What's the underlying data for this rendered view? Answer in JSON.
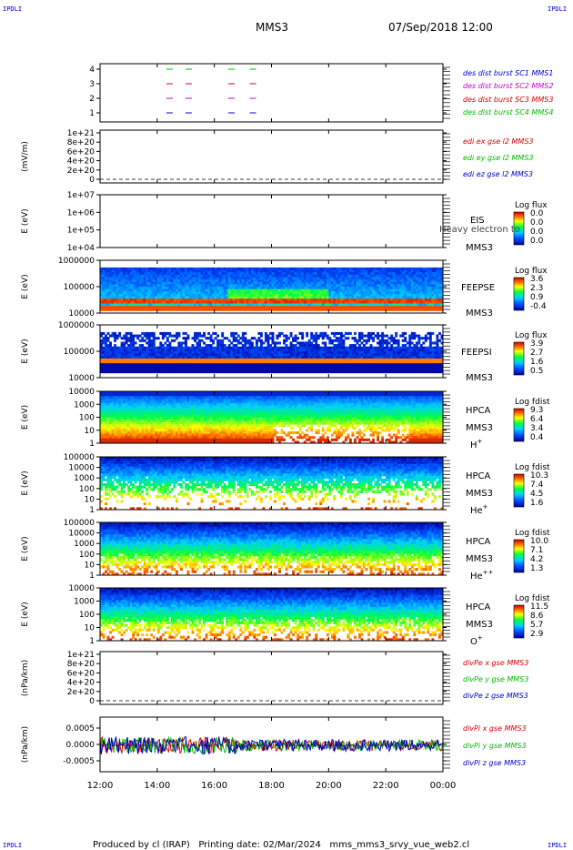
{
  "corner_labels": {
    "tl": "IPDLI",
    "tr": "IPDLI",
    "bl": "IPDLI",
    "br": "IPDLI"
  },
  "header": {
    "mission": "MMS3",
    "datetime": "07/Sep/2018 12:00"
  },
  "footer": {
    "text": "Produced by cl (IRAP)   Printing date: 02/Mar/2024   mms_mms3_srvy_vue_web2.cl"
  },
  "colors": {
    "red": "#dd0000",
    "green": "#00bb00",
    "blue": "#0000cc",
    "magenta": "#cc00cc",
    "axis": "#000000"
  },
  "x_ticks": [
    "12:00",
    "14:00",
    "16:00",
    "18:00",
    "20:00",
    "22:00",
    "00:00"
  ],
  "chart_data": [
    {
      "type": "scatter",
      "title": "",
      "ylabel": "",
      "ytick_labels": [
        "4",
        "3",
        "2",
        "1"
      ],
      "legend": [
        {
          "label": "des dist burst SC1 MMS1",
          "color": "#0000cc"
        },
        {
          "label": "des dist burst SC2 MMS2",
          "color": "#cc00cc"
        },
        {
          "label": "des dist burst SC3 MMS3",
          "color": "#dd0000"
        },
        {
          "label": "des dist burst SC4 MMS4",
          "color": "#00bb00"
        }
      ],
      "series": [
        {
          "name": "des dist burst SC4 MMS4",
          "level": 4,
          "x": [
            "14:25",
            "15:05",
            "16:35",
            "17:20"
          ]
        },
        {
          "name": "des dist burst SC3 MMS3",
          "level": 3,
          "x": [
            "14:25",
            "15:05",
            "16:35",
            "17:20"
          ]
        },
        {
          "name": "des dist burst SC2 MMS2",
          "level": 2,
          "x": [
            "14:25",
            "15:05",
            "16:35",
            "17:20"
          ]
        },
        {
          "name": "des dist burst SC1 MMS1",
          "level": 1,
          "x": [
            "14:25",
            "15:05",
            "16:35",
            "17:20"
          ]
        }
      ]
    },
    {
      "type": "line",
      "ylabel": "(mV/m)",
      "ytick_labels": [
        "1e+21",
        "8e+20",
        "6e+20",
        "4e+20",
        "2e+20",
        "0"
      ],
      "legend": [
        {
          "label": "edi ex gse l2 MMS3",
          "color": "#dd0000"
        },
        {
          "label": "edi ey gse l2 MMS3",
          "color": "#00bb00"
        },
        {
          "label": "edi ez gse l2 MMS3",
          "color": "#0000cc"
        }
      ]
    },
    {
      "type": "heatmap",
      "ylabel": "E (eV)",
      "ytick_labels": [
        "1e+07",
        "1e+06",
        "1e+05",
        "1e+04"
      ],
      "side_labels": [
        "EIS",
        "MMS3"
      ],
      "overlay_text": "Heavy electron to",
      "colorbar": {
        "title": "Log flux",
        "ticks": [
          "0.0",
          "0.0",
          "0.0",
          "0.0"
        ]
      }
    },
    {
      "type": "heatmap",
      "ylabel": "E (eV)",
      "ytick_labels": [
        "1000000",
        "100000",
        "10000"
      ],
      "side_labels": [
        "FEEPSE",
        "MMS3"
      ],
      "colorbar": {
        "title": "Log flux",
        "ticks": [
          "3.6",
          "2.3",
          "0.9",
          "-0.4"
        ]
      }
    },
    {
      "type": "heatmap",
      "ylabel": "E (eV)",
      "ytick_labels": [
        "1000000",
        "100000",
        "10000"
      ],
      "side_labels": [
        "FEEPSI",
        "MMS3"
      ],
      "colorbar": {
        "title": "Log flux",
        "ticks": [
          "3.9",
          "2.7",
          "1.6",
          "0.5"
        ]
      }
    },
    {
      "type": "heatmap",
      "ylabel": "E (eV)",
      "ytick_labels": [
        "10000",
        "1000",
        "100",
        "10",
        "1"
      ],
      "side_labels": [
        "HPCA",
        "MMS3"
      ],
      "species": "H+",
      "colorbar": {
        "title": "Log fdist",
        "ticks": [
          "9.3",
          "6.4",
          "3.4",
          "0.4"
        ]
      }
    },
    {
      "type": "heatmap",
      "ylabel": "E (eV)",
      "ytick_labels": [
        "100000",
        "10000",
        "1000",
        "100",
        "10",
        "1"
      ],
      "side_labels": [
        "HPCA",
        "MMS3"
      ],
      "species": "He+",
      "colorbar": {
        "title": "Log fdist",
        "ticks": [
          "10.3",
          "7.4",
          "4.5",
          "1.6"
        ]
      }
    },
    {
      "type": "heatmap",
      "ylabel": "E (eV)",
      "ytick_labels": [
        "100000",
        "10000",
        "1000",
        "100",
        "10",
        "1"
      ],
      "side_labels": [
        "HPCA",
        "MMS3"
      ],
      "species": "He++",
      "colorbar": {
        "title": "Log fdist",
        "ticks": [
          "10.0",
          "7.1",
          "4.2",
          "1.3"
        ]
      }
    },
    {
      "type": "heatmap",
      "ylabel": "E (eV)",
      "ytick_labels": [
        "10000",
        "1000",
        "100",
        "10",
        "1"
      ],
      "side_labels": [
        "HPCA",
        "MMS3"
      ],
      "species": "O+",
      "colorbar": {
        "title": "Log fdist",
        "ticks": [
          "11.5",
          "8.6",
          "5.7",
          "2.9"
        ]
      }
    },
    {
      "type": "line",
      "ylabel": "(nPa/km)",
      "ytick_labels": [
        "1e+21",
        "8e+20",
        "6e+20",
        "4e+20",
        "2e+20",
        "0"
      ],
      "legend": [
        {
          "label": "divPe x gse MMS3",
          "color": "#dd0000"
        },
        {
          "label": "divPe y gse MMS3",
          "color": "#00bb00"
        },
        {
          "label": "divPe z gse MMS3",
          "color": "#0000cc"
        }
      ]
    },
    {
      "type": "line",
      "ylabel": "(nPa/km)",
      "ytick_labels": [
        "0.0005",
        "0.0000",
        "-0.0005"
      ],
      "ylim": [
        -0.0008,
        0.0008
      ],
      "legend": [
        {
          "label": "divPi x gse MMS3",
          "color": "#dd0000"
        },
        {
          "label": "divPi y gse MMS3",
          "color": "#00bb00"
        },
        {
          "label": "divPi z gse MMS3",
          "color": "#0000cc"
        }
      ]
    }
  ]
}
